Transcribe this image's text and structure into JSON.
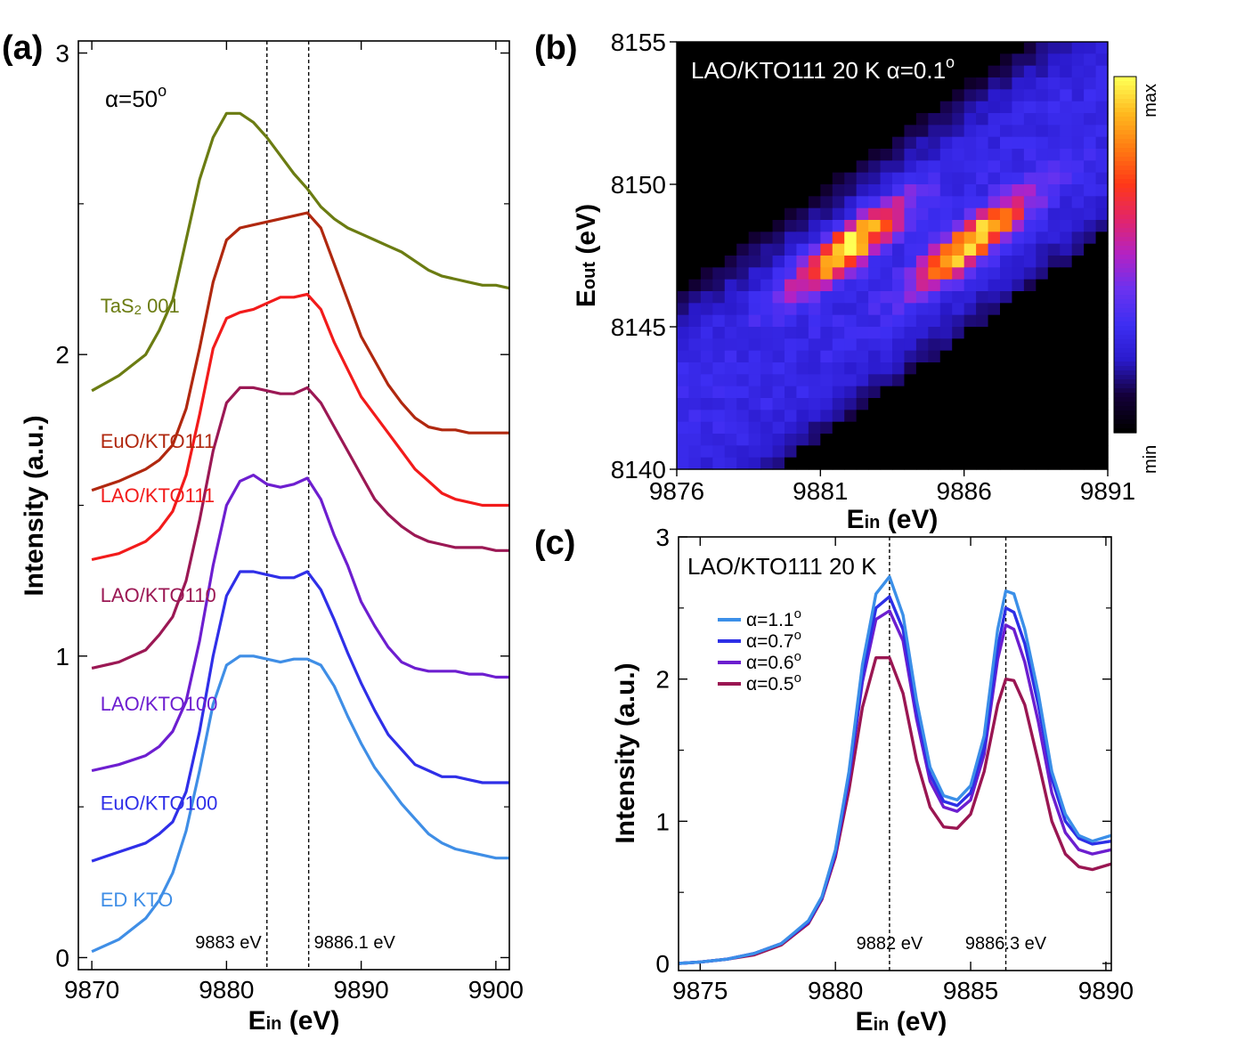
{
  "panel_labels": {
    "a": "(a)",
    "b": "(b)",
    "c": "(c)"
  },
  "chart_data": [
    {
      "id": "a",
      "type": "line",
      "title": "",
      "annotation": "α=50",
      "annotation_sup": "o",
      "xlabel_main": "E",
      "xlabel_sub": "in",
      "xlabel_unit": " (eV)",
      "ylabel": "Intensity (a.u.)",
      "xlim": [
        9869,
        9901
      ],
      "ylim": [
        -0.04,
        3.04
      ],
      "xticks": [
        9870,
        9880,
        9890,
        9900
      ],
      "xtick_labels": [
        "9870",
        "9880",
        "9890",
        "9900"
      ],
      "yticks": [
        0,
        1,
        2,
        3
      ],
      "ytick_labels": [
        "0",
        "1",
        "2",
        "3"
      ],
      "ytick_minor": [
        0.5,
        1.5,
        2.5
      ],
      "vlines": [
        {
          "x": 9883,
          "label": "9883 eV",
          "side": "left"
        },
        {
          "x": 9886.1,
          "label": "9886.1 eV",
          "side": "right"
        }
      ],
      "x": [
        9870,
        9872,
        9874,
        9875,
        9876,
        9877,
        9878,
        9879,
        9880,
        9881,
        9882,
        9883,
        9884,
        9885,
        9886,
        9887,
        9888,
        9889,
        9890,
        9891,
        9892,
        9893,
        9894,
        9895,
        9896,
        9897,
        9898,
        9899,
        9900,
        9901
      ],
      "series": [
        {
          "name": "ED KTO",
          "color": "#3f8ee6",
          "values": [
            0.02,
            0.06,
            0.13,
            0.19,
            0.28,
            0.42,
            0.62,
            0.84,
            0.97,
            1.0,
            1.0,
            0.99,
            0.98,
            0.99,
            0.99,
            0.97,
            0.9,
            0.8,
            0.71,
            0.63,
            0.57,
            0.51,
            0.46,
            0.41,
            0.38,
            0.36,
            0.35,
            0.34,
            0.33,
            0.33
          ]
        },
        {
          "name": "EuO/KTO100",
          "color": "#2f2fe8",
          "values": [
            0.32,
            0.35,
            0.38,
            0.41,
            0.45,
            0.55,
            0.75,
            1.0,
            1.2,
            1.28,
            1.28,
            1.27,
            1.26,
            1.26,
            1.28,
            1.22,
            1.12,
            1.01,
            0.91,
            0.82,
            0.74,
            0.69,
            0.64,
            0.62,
            0.6,
            0.6,
            0.59,
            0.58,
            0.58,
            0.58
          ]
        },
        {
          "name": "LAO/KTO100",
          "color": "#6d1ed0",
          "values": [
            0.62,
            0.64,
            0.67,
            0.7,
            0.75,
            0.85,
            1.05,
            1.3,
            1.5,
            1.58,
            1.6,
            1.57,
            1.56,
            1.57,
            1.59,
            1.52,
            1.4,
            1.3,
            1.18,
            1.1,
            1.03,
            0.98,
            0.96,
            0.95,
            0.95,
            0.95,
            0.94,
            0.94,
            0.93,
            0.93
          ]
        },
        {
          "name": "LAO/KTO110",
          "color": "#9b1854",
          "values": [
            0.96,
            0.98,
            1.02,
            1.07,
            1.13,
            1.25,
            1.45,
            1.68,
            1.84,
            1.89,
            1.89,
            1.88,
            1.87,
            1.87,
            1.89,
            1.84,
            1.76,
            1.68,
            1.6,
            1.52,
            1.47,
            1.43,
            1.4,
            1.38,
            1.37,
            1.36,
            1.36,
            1.36,
            1.35,
            1.35
          ]
        },
        {
          "name": "LAO/KTO111",
          "color": "#f21b1b",
          "values": [
            1.32,
            1.34,
            1.38,
            1.42,
            1.48,
            1.6,
            1.8,
            2.02,
            2.12,
            2.14,
            2.15,
            2.17,
            2.19,
            2.19,
            2.2,
            2.15,
            2.04,
            1.95,
            1.86,
            1.8,
            1.74,
            1.68,
            1.62,
            1.58,
            1.54,
            1.52,
            1.51,
            1.5,
            1.5,
            1.5
          ]
        },
        {
          "name": "EuO/KTO111",
          "color": "#b0280f",
          "values": [
            1.55,
            1.58,
            1.62,
            1.65,
            1.7,
            1.82,
            2.02,
            2.24,
            2.38,
            2.42,
            2.43,
            2.44,
            2.45,
            2.46,
            2.47,
            2.42,
            2.3,
            2.18,
            2.06,
            1.98,
            1.9,
            1.84,
            1.79,
            1.76,
            1.75,
            1.75,
            1.74,
            1.74,
            1.74,
            1.74
          ]
        },
        {
          "name": "TaS2 001",
          "color": "#6b7c12",
          "values": [
            1.88,
            1.93,
            2.0,
            2.08,
            2.18,
            2.38,
            2.58,
            2.72,
            2.8,
            2.8,
            2.77,
            2.72,
            2.66,
            2.6,
            2.55,
            2.49,
            2.45,
            2.42,
            2.4,
            2.38,
            2.36,
            2.34,
            2.31,
            2.28,
            2.26,
            2.25,
            2.24,
            2.23,
            2.23,
            2.22
          ]
        }
      ],
      "label_x": [
        9870.5,
        9870.5,
        9870.5,
        9870.5,
        9870.5,
        9870.5,
        9870.5
      ],
      "label_y": [
        0.17,
        0.49,
        0.82,
        1.18,
        1.51,
        1.69,
        2.14
      ]
    },
    {
      "id": "b",
      "type": "heatmap",
      "title": "LAO/KTO111 20 K  α=0.1",
      "title_sup": "o",
      "xlabel_main": "E",
      "xlabel_sub": "in",
      "xlabel_unit": " (eV)",
      "ylabel_main": "E",
      "ylabel_sub": "out",
      "ylabel_unit": " (eV)",
      "xlim": [
        9876,
        9891
      ],
      "ylim": [
        8140,
        8155
      ],
      "xticks": [
        9876,
        9881,
        9886,
        9891
      ],
      "xtick_labels": [
        "9876",
        "9881",
        "9886",
        "9891"
      ],
      "yticks": [
        8140,
        8145,
        8150,
        8155
      ],
      "ytick_labels": [
        "8140",
        "8145",
        "8150",
        "8155"
      ],
      "colorbar": {
        "min_label": "min",
        "max_label": "max",
        "colors": [
          "#000000",
          "#14003a",
          "#2a1acc",
          "#3d2ef2",
          "#6a32f0",
          "#b322c4",
          "#e2256a",
          "#ff3818",
          "#ff7a12",
          "#ffb81e",
          "#ffff54"
        ]
      },
      "band_slope": 0.72,
      "band_intercept_low": 8138.3,
      "band_intercept_high": 8143.0,
      "peaks": [
        {
          "ein": 9882,
          "eout": 8147.8
        },
        {
          "ein": 9886.3,
          "eout": 8148.0
        }
      ],
      "grid": [
        36,
        36
      ]
    },
    {
      "id": "c",
      "type": "line",
      "title": "LAO/KTO111 20 K",
      "xlabel_main": "E",
      "xlabel_sub": "in",
      "xlabel_unit": " (eV)",
      "ylabel": "Intensity (a.u.)",
      "xlim": [
        9874.2,
        9890.2
      ],
      "ylim": [
        -0.05,
        3.0
      ],
      "xticks": [
        9875,
        9880,
        9885,
        9890
      ],
      "xtick_labels": [
        "9875",
        "9880",
        "9885",
        "9890"
      ],
      "yticks": [
        0,
        1,
        2,
        3
      ],
      "ytick_labels": [
        "0",
        "1",
        "2",
        "3"
      ],
      "ytick_minor": [
        0.5,
        1.5,
        2.5
      ],
      "vlines": [
        {
          "x": 9882,
          "label": "9882 eV",
          "side": "left"
        },
        {
          "x": 9886.3,
          "label": "9886.3 eV",
          "side": "left"
        }
      ],
      "x": [
        9874.2,
        9875,
        9876,
        9877,
        9878,
        9879,
        9879.5,
        9880,
        9880.5,
        9881,
        9881.5,
        9882,
        9882.5,
        9883,
        9883.5,
        9884,
        9884.5,
        9885,
        9885.5,
        9886,
        9886.3,
        9886.6,
        9887,
        9887.5,
        9888,
        9888.5,
        9889,
        9889.5,
        9890.2
      ],
      "series": [
        {
          "name": "α=1.1",
          "color": "#3b8fe8",
          "values": [
            0.0,
            0.01,
            0.03,
            0.07,
            0.14,
            0.3,
            0.47,
            0.8,
            1.35,
            2.1,
            2.6,
            2.72,
            2.45,
            1.85,
            1.38,
            1.18,
            1.15,
            1.25,
            1.6,
            2.35,
            2.62,
            2.6,
            2.35,
            1.9,
            1.35,
            1.05,
            0.9,
            0.86,
            0.9
          ]
        },
        {
          "name": "α=0.7",
          "color": "#2d2fe6",
          "values": [
            0.0,
            0.01,
            0.03,
            0.07,
            0.14,
            0.29,
            0.46,
            0.78,
            1.32,
            2.02,
            2.5,
            2.58,
            2.35,
            1.78,
            1.33,
            1.14,
            1.11,
            1.2,
            1.52,
            2.22,
            2.5,
            2.47,
            2.25,
            1.82,
            1.3,
            1.0,
            0.88,
            0.84,
            0.86
          ]
        },
        {
          "name": "α=0.6",
          "color": "#6c1ecf",
          "values": [
            0.0,
            0.01,
            0.03,
            0.07,
            0.14,
            0.29,
            0.46,
            0.77,
            1.3,
            1.98,
            2.42,
            2.48,
            2.27,
            1.72,
            1.28,
            1.1,
            1.07,
            1.15,
            1.47,
            2.14,
            2.38,
            2.35,
            2.12,
            1.7,
            1.2,
            0.92,
            0.8,
            0.77,
            0.8
          ]
        },
        {
          "name": "α=0.5",
          "color": "#9a1652",
          "values": [
            0.0,
            0.01,
            0.03,
            0.06,
            0.13,
            0.28,
            0.45,
            0.75,
            1.22,
            1.8,
            2.15,
            2.15,
            1.9,
            1.43,
            1.1,
            0.96,
            0.95,
            1.05,
            1.35,
            1.82,
            2.0,
            1.99,
            1.82,
            1.42,
            1.0,
            0.77,
            0.68,
            0.66,
            0.7
          ]
        }
      ],
      "legend_sup": "o",
      "legend_position": "upper-left"
    }
  ]
}
